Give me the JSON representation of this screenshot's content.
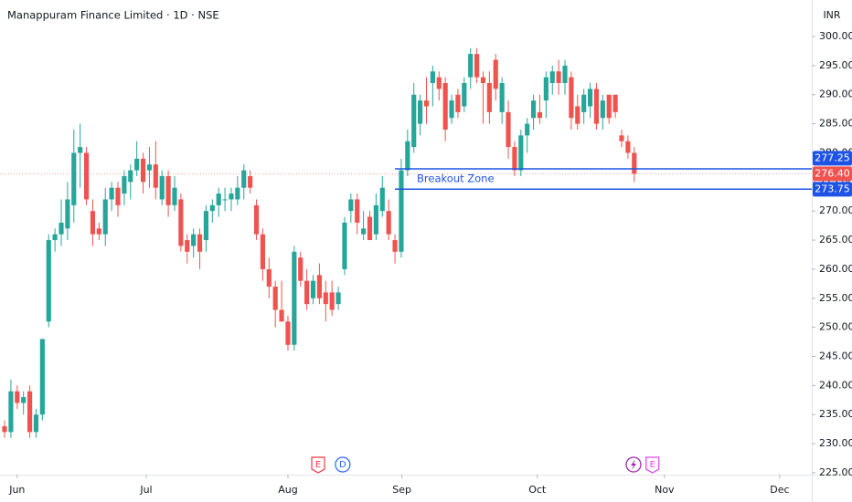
{
  "chart_data": {
    "type": "candlestick",
    "title": "Manappuram Finance Limited · 1D · NSE",
    "currency": "INR",
    "up_color": "#26a69a",
    "down_color": "#ef5350",
    "candles": [
      [
        233,
        234,
        231,
        232
      ],
      [
        232,
        241,
        231,
        239
      ],
      [
        239,
        240,
        236,
        237
      ],
      [
        237,
        239,
        235,
        238
      ],
      [
        239,
        240,
        231,
        232
      ],
      [
        232,
        236,
        231,
        235
      ],
      [
        235,
        248,
        234,
        248
      ],
      [
        251,
        266,
        250,
        265
      ],
      [
        265,
        267,
        263,
        266
      ],
      [
        266,
        272,
        264,
        268
      ],
      [
        267,
        275,
        265,
        272
      ],
      [
        271,
        284,
        268,
        280
      ],
      [
        280,
        285,
        274,
        281
      ],
      [
        280,
        281,
        271,
        272
      ],
      [
        270,
        272,
        264,
        266
      ],
      [
        267,
        268,
        265,
        266
      ],
      [
        266,
        274,
        264,
        272
      ],
      [
        272,
        275,
        270,
        274
      ],
      [
        274,
        275,
        269,
        271
      ],
      [
        273,
        277,
        271,
        276
      ],
      [
        275,
        278,
        272,
        277
      ],
      [
        277,
        282,
        276,
        279
      ],
      [
        279,
        280,
        273,
        275
      ],
      [
        277,
        281,
        274,
        278
      ],
      [
        278,
        282,
        272,
        274
      ],
      [
        272,
        277,
        271,
        276
      ],
      [
        276,
        277,
        269,
        271
      ],
      [
        271,
        276,
        270,
        274
      ],
      [
        272,
        273,
        263,
        264
      ],
      [
        265,
        266,
        261,
        263
      ],
      [
        264,
        267,
        262,
        266
      ],
      [
        266,
        267,
        260,
        263
      ],
      [
        265,
        271,
        263,
        270
      ],
      [
        270,
        272,
        268,
        271
      ],
      [
        271,
        274,
        269,
        273
      ],
      [
        272,
        274,
        270,
        272
      ],
      [
        272,
        274,
        270,
        273
      ],
      [
        272,
        276,
        271,
        274
      ],
      [
        274,
        278,
        272,
        277
      ],
      [
        276,
        277,
        273,
        274
      ],
      [
        271,
        272,
        265,
        266
      ],
      [
        266,
        267,
        258,
        260
      ],
      [
        260,
        262,
        255,
        257
      ],
      [
        257,
        258,
        250,
        253
      ],
      [
        253,
        258,
        251,
        251
      ],
      [
        251,
        252,
        246,
        247
      ],
      [
        247,
        264,
        246,
        263
      ],
      [
        262,
        263,
        257,
        258
      ],
      [
        258,
        260,
        253,
        254
      ],
      [
        255,
        259,
        254,
        258
      ],
      [
        259,
        261,
        254,
        255
      ],
      [
        256,
        258,
        251,
        254
      ],
      [
        256,
        258,
        252,
        253
      ],
      [
        254,
        257,
        253,
        256
      ],
      [
        260,
        269,
        259,
        268
      ],
      [
        270,
        273,
        268,
        272
      ],
      [
        272,
        273,
        266,
        268
      ],
      [
        266,
        270,
        265,
        267
      ],
      [
        269,
        270,
        265,
        265
      ],
      [
        266,
        273,
        265,
        271
      ],
      [
        270,
        276,
        269,
        274
      ],
      [
        270,
        272,
        265,
        266
      ],
      [
        265,
        266,
        261,
        263
      ],
      [
        263,
        279,
        262,
        277
      ],
      [
        277,
        284,
        276,
        282
      ],
      [
        281,
        292,
        280,
        290
      ],
      [
        285,
        290,
        283,
        289
      ],
      [
        289,
        293,
        285,
        288
      ],
      [
        292,
        295,
        288,
        294
      ],
      [
        293,
        294,
        289,
        291
      ],
      [
        292,
        293,
        282,
        284
      ],
      [
        286,
        290,
        285,
        289
      ],
      [
        290,
        291,
        286,
        287
      ],
      [
        288,
        293,
        287,
        292
      ],
      [
        293,
        298,
        291,
        297
      ],
      [
        297,
        298,
        292,
        293
      ],
      [
        293,
        294,
        285,
        292
      ],
      [
        292,
        294,
        285,
        287
      ],
      [
        296,
        297,
        289,
        291
      ],
      [
        287,
        293,
        285,
        292
      ],
      [
        287,
        289,
        279,
        281
      ],
      [
        281,
        282,
        276,
        277
      ],
      [
        277,
        284,
        276,
        283
      ],
      [
        283,
        286,
        280,
        285
      ],
      [
        286,
        290,
        284,
        289
      ],
      [
        287,
        290,
        285,
        286
      ],
      [
        289,
        294,
        286,
        293
      ],
      [
        292,
        295,
        290,
        294
      ],
      [
        294,
        296,
        290,
        292
      ],
      [
        292,
        296,
        290,
        295
      ],
      [
        293,
        294,
        284,
        286
      ],
      [
        288,
        290,
        284,
        285
      ],
      [
        287,
        291,
        285,
        290
      ],
      [
        288,
        292,
        286,
        291
      ],
      [
        291,
        292,
        284,
        285
      ],
      [
        286,
        290,
        284,
        289
      ],
      [
        290,
        290,
        285,
        286
      ],
      [
        290,
        290,
        286,
        287
      ],
      [
        283,
        284,
        281,
        282
      ],
      [
        282,
        283,
        279,
        280
      ],
      [
        280,
        281,
        275,
        276.4
      ]
    ],
    "xlim": [
      -0.73,
      128.2
    ],
    "xticks": [
      {
        "value": 2.0,
        "label": "Jun"
      },
      {
        "value": 22.5,
        "label": "Jul"
      },
      {
        "value": 45.0,
        "label": "Aug"
      },
      {
        "value": 63.1,
        "label": "Sep"
      },
      {
        "value": 84.6,
        "label": "Oct"
      },
      {
        "value": 104.8,
        "label": "Nov"
      },
      {
        "value": 123.1,
        "label": "Dec"
      }
    ],
    "ylim": [
      224.68,
      306.28
    ],
    "yticks": [
      {
        "value": 225,
        "label": "225.00"
      },
      {
        "value": 230,
        "label": "230.00"
      },
      {
        "value": 235,
        "label": "235.00"
      },
      {
        "value": 240,
        "label": "240.00"
      },
      {
        "value": 245,
        "label": "245.00"
      },
      {
        "value": 250,
        "label": "250.00"
      },
      {
        "value": 255,
        "label": "255.00"
      },
      {
        "value": 260,
        "label": "260.00"
      },
      {
        "value": 265,
        "label": "265.00"
      },
      {
        "value": 270,
        "label": "270.00"
      },
      {
        "value": 275,
        "label": "275.00"
      },
      {
        "value": 280,
        "label": "280.00"
      },
      {
        "value": 285,
        "label": "285.00"
      },
      {
        "value": 290,
        "label": "290.00"
      },
      {
        "value": 295,
        "label": "295.00"
      },
      {
        "value": 300,
        "label": "300.00"
      }
    ],
    "levels": [
      {
        "value": 277.25,
        "from_x": 62
      },
      {
        "value": 273.75,
        "from_x": 62
      }
    ],
    "zone_label": "Breakout Zone",
    "last_price": {
      "value": 276.4,
      "label": "276.40"
    },
    "events": [
      {
        "x": 49.8,
        "label": "E"
      },
      {
        "x": 53.7,
        "label": "D"
      },
      {
        "x": 102.9,
        "label": "E"
      }
    ]
  }
}
